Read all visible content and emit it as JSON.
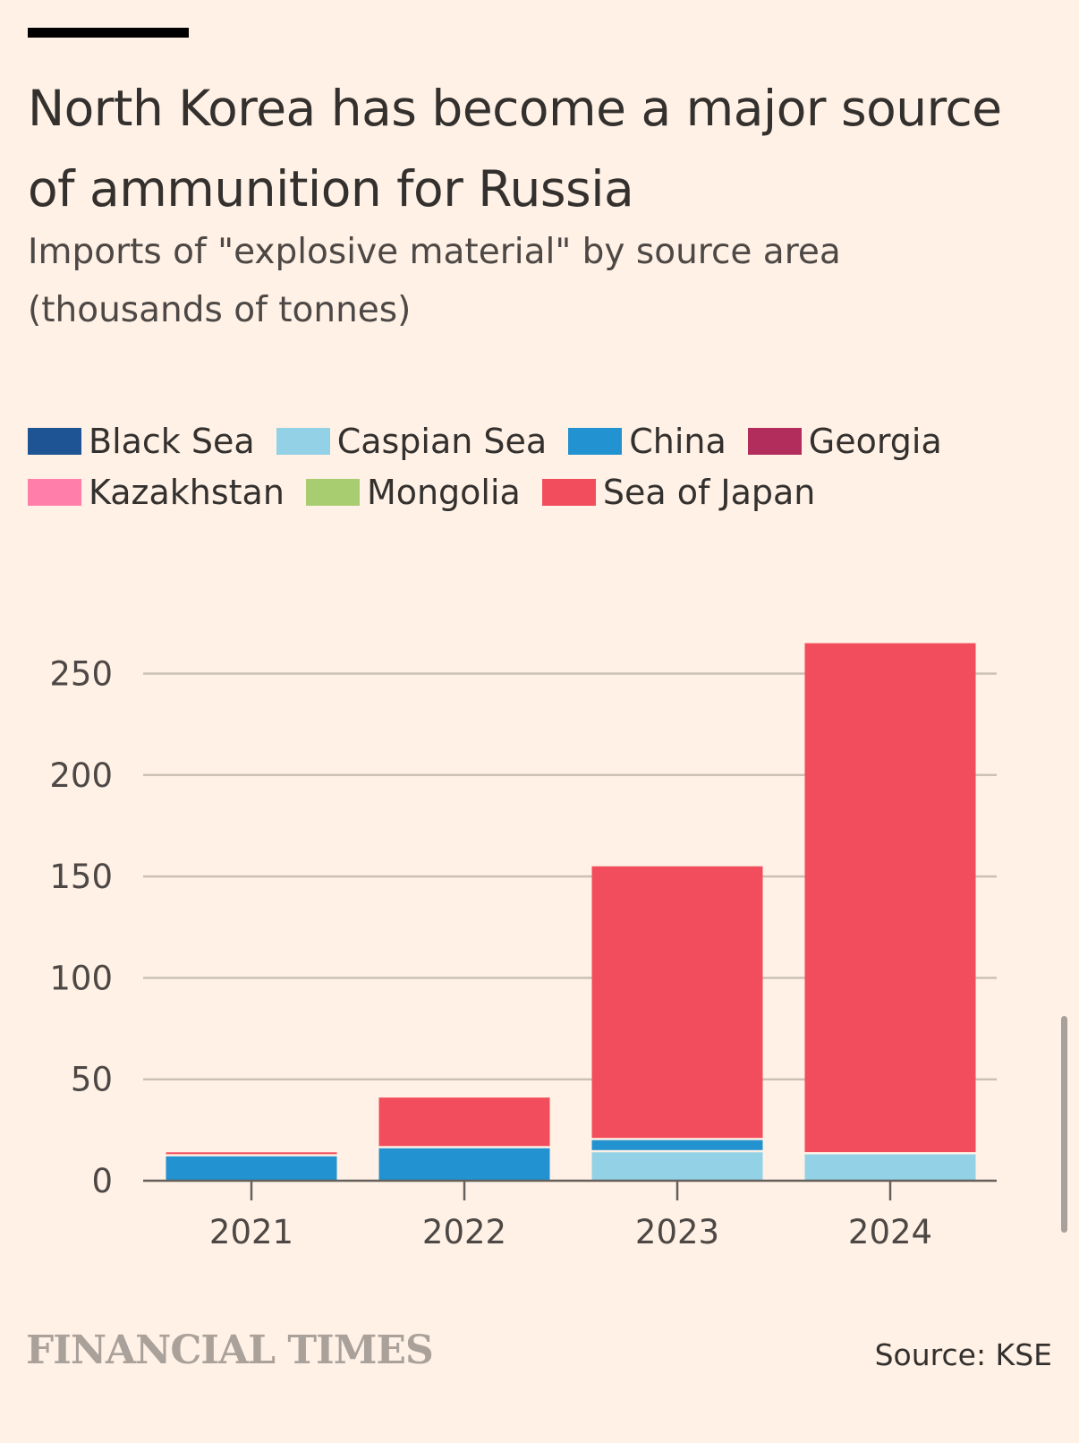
{
  "header": {
    "title": "North Korea has become a major source of ammunition for Russia",
    "subtitle": "Imports of \"explosive material\" by source area (thousands of tonnes)"
  },
  "footer": {
    "logo_text": "FINANCIAL TIMES",
    "source": "Source: KSE"
  },
  "colors": {
    "background": "#fff1e5",
    "text": "#33302e",
    "gridline": "#ccc1b7"
  },
  "chart_data": {
    "type": "bar",
    "stacked": true,
    "title": "North Korea has become a major source of ammunition for Russia",
    "subtitle": "Imports of \"explosive material\" by source area (thousands of tonnes)",
    "categories": [
      "2021",
      "2022",
      "2023",
      "2024"
    ],
    "ylim": [
      0,
      260
    ],
    "yticks": [
      0,
      50,
      100,
      150,
      200,
      250
    ],
    "grid": true,
    "legend_position": "top",
    "series": [
      {
        "name": "Black Sea",
        "color": "#1f5494",
        "values": [
          0,
          0,
          0,
          0
        ]
      },
      {
        "name": "Caspian Sea",
        "color": "#93d1e6",
        "values": [
          0,
          0,
          14,
          13
        ]
      },
      {
        "name": "China",
        "color": "#2292d0",
        "values": [
          12,
          16,
          6,
          0
        ]
      },
      {
        "name": "Georgia",
        "color": "#b32d5c",
        "values": [
          0,
          0,
          0,
          0
        ]
      },
      {
        "name": "Kazakhstan",
        "color": "#ff7faa",
        "values": [
          0,
          0,
          0,
          0
        ]
      },
      {
        "name": "Mongolia",
        "color": "#a8cd70",
        "values": [
          0,
          0,
          0,
          0
        ]
      },
      {
        "name": "Sea of Japan",
        "color": "#f24d5c",
        "values": [
          2,
          25,
          135,
          252
        ]
      }
    ]
  }
}
